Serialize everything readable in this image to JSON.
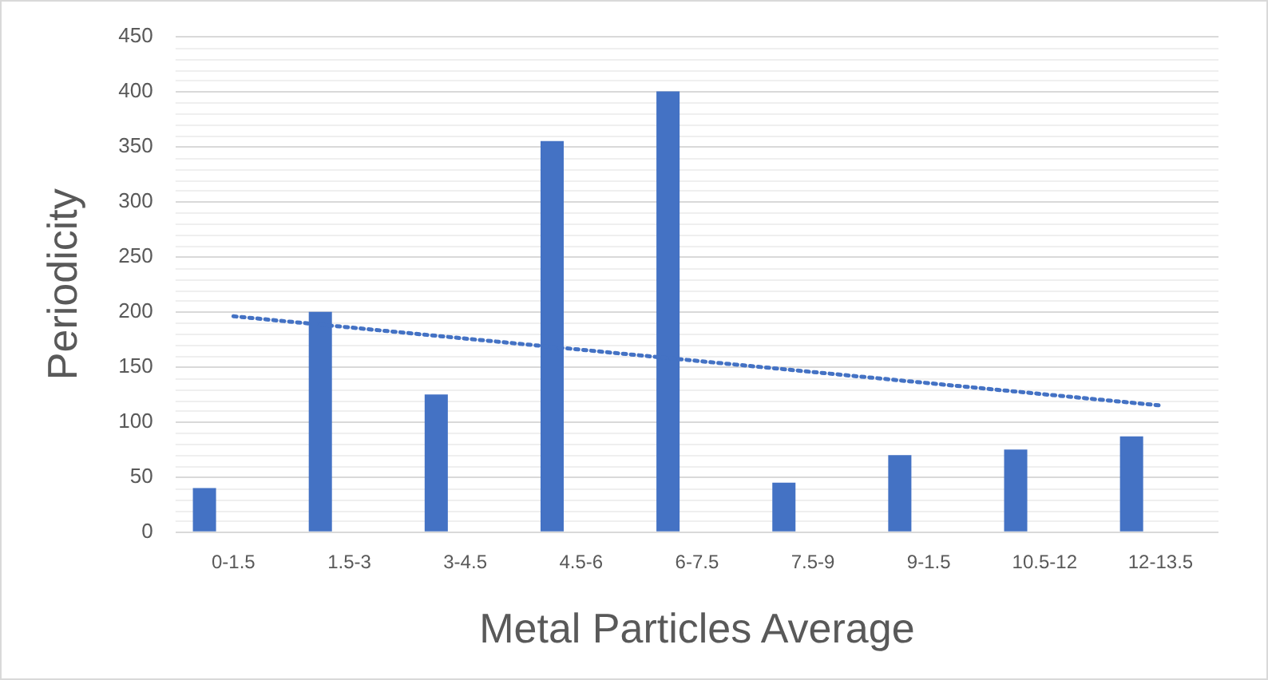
{
  "chart_data": {
    "type": "bar",
    "xlabel": "Metal Particles Average",
    "ylabel": "Periodicity",
    "categories": [
      "0-1.5",
      "1.5-3",
      "3-4.5",
      "4.5-6",
      "6-7.5",
      "7.5-9",
      "9-1.5",
      "10.5-12",
      "12-13.5"
    ],
    "series": [
      {
        "color": "#4472c4",
        "values": [
          40,
          200,
          125,
          355,
          400,
          45,
          70,
          75,
          87
        ]
      },
      {
        "type": "line",
        "color": "#4472c4",
        "line_style": "dotted",
        "marker": "none",
        "x": [
          "0-1.5",
          "12-13.5"
        ],
        "values": [
          196,
          115
        ]
      }
    ],
    "ylim": [
      0,
      450
    ],
    "yticks": [
      0,
      50,
      100,
      150,
      200,
      250,
      300,
      350,
      400,
      450
    ],
    "grid": "y",
    "legend": false
  }
}
